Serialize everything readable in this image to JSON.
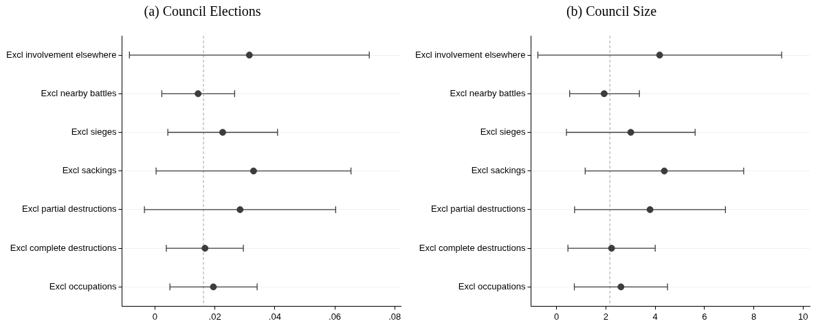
{
  "chart_data": [
    {
      "type": "scatter",
      "title": "(a) Council Elections",
      "orientation": "horizontal",
      "categories": [
        "Excl involvement elsewhere",
        "Excl nearby battles",
        "Excl sieges",
        "Excl sackings",
        "Excl partial destructions",
        "Excl complete destructions",
        "Excl occupations"
      ],
      "values": [
        0.0315,
        0.0144,
        0.0226,
        0.0329,
        0.0284,
        0.0167,
        0.0195
      ],
      "errors": [
        [
          -0.0085,
          0.0715
        ],
        [
          0.0023,
          0.0266
        ],
        [
          0.0043,
          0.0409
        ],
        [
          0.0004,
          0.0654
        ],
        [
          -0.0035,
          0.0603
        ],
        [
          0.0038,
          0.0295
        ],
        [
          0.005,
          0.0341
        ]
      ],
      "color": "#3c3c3c",
      "marker": "circle",
      "grid": "y",
      "xlim": [
        -0.011,
        0.082
      ],
      "xticks": [
        0,
        {
          "value": 0.02,
          "label": ".02"
        },
        {
          "value": 0.04,
          "label": ".04"
        },
        {
          "value": 0.06,
          "label": ".06"
        },
        {
          "value": 0.08,
          "label": ".08"
        }
      ],
      "ref_lines": [
        {
          "axis": "x",
          "value": 0.0162,
          "color": "#a0a0a0",
          "line_style": "dashed"
        }
      ]
    },
    {
      "type": "scatter",
      "title": "(b) Council Size",
      "orientation": "horizontal",
      "categories": [
        "Excl involvement elsewhere",
        "Excl nearby battles",
        "Excl sieges",
        "Excl sackings",
        "Excl partial destructions",
        "Excl complete destructions",
        "Excl occupations"
      ],
      "values": [
        4.18,
        1.93,
        3.01,
        4.37,
        3.79,
        2.23,
        2.61
      ],
      "errors": [
        [
          -0.76,
          9.13
        ],
        [
          0.53,
          3.36
        ],
        [
          0.4,
          5.62
        ],
        [
          1.16,
          7.59
        ],
        [
          0.73,
          6.85
        ],
        [
          0.46,
          4.0
        ],
        [
          0.72,
          4.5
        ]
      ],
      "color": "#3c3c3c",
      "marker": "circle",
      "grid": "y",
      "xlim": [
        -1.04,
        10.27
      ],
      "xticks": [
        0,
        2,
        4,
        6,
        8,
        10
      ],
      "ref_lines": [
        {
          "axis": "x",
          "value": 2.16,
          "color": "#a0a0a0",
          "line_style": "dashed"
        }
      ]
    }
  ]
}
